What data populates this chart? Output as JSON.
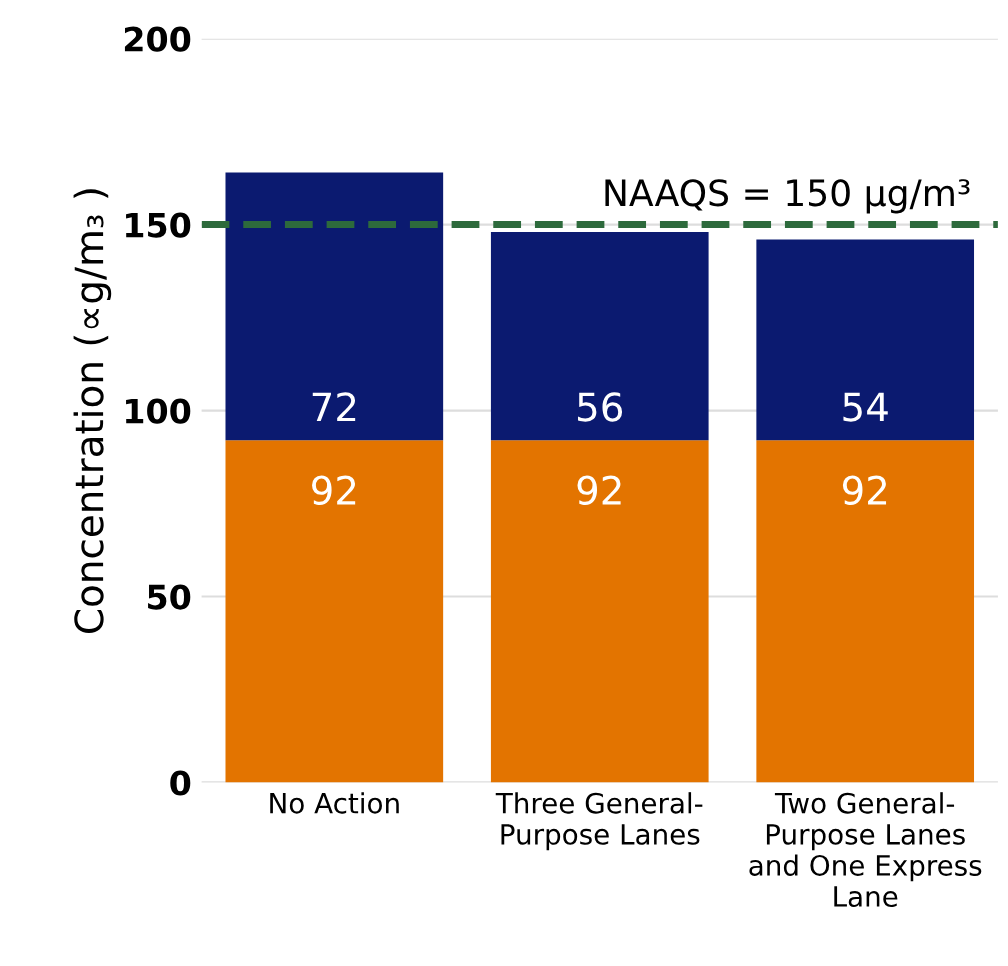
{
  "chart_data": {
    "type": "bar",
    "stacked": true,
    "ylabel": "Concentration (∝g/m₃ )",
    "categories": [
      "No Action",
      "Three General-\nPurpose Lanes",
      "Two General-\nPurpose Lanes\nand One Express\nLane"
    ],
    "series": [
      {
        "color": "#e37400",
        "values": [
          92,
          92,
          92
        ]
      },
      {
        "color": "#0b1a70",
        "values": [
          72,
          56,
          54
        ]
      }
    ],
    "ylim": [
      0,
      200
    ],
    "yticks": [
      0,
      50,
      100,
      150,
      200
    ],
    "grid": "y",
    "data_labels": true,
    "ref_lines": [
      {
        "axis": "y",
        "value": 150,
        "label": "NAAQS = 150 µg/m³",
        "color": "#2d6a3c",
        "line_style": "dashed"
      }
    ]
  }
}
